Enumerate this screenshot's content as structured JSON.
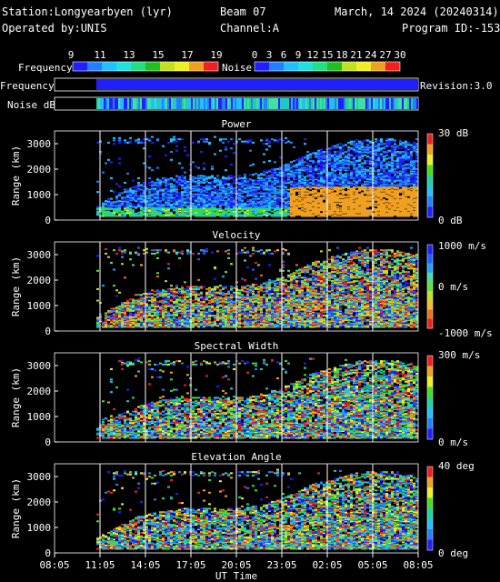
{
  "header": {
    "station": "Station:Longyearbyen (lyr)",
    "beam": "Beam 07",
    "date": "March, 14 2024 (20240314)",
    "operator": "Operated by:UNIS",
    "channel": "Channel:A",
    "program": "Program ID:-153",
    "revision": "Revision:3.0"
  },
  "legend": {
    "frequency_label": "Frequency",
    "noise_label": "Noise",
    "frequency_ticks": [
      "9",
      "11",
      "13",
      "15",
      "17",
      "19"
    ],
    "noise_ticks": [
      "0",
      "3",
      "6",
      "9",
      "12",
      "15",
      "18",
      "21",
      "24",
      "27",
      "30"
    ],
    "colors": [
      "#2020ff",
      "#2080ff",
      "#20c0ff",
      "#20e0e0",
      "#20e080",
      "#20c020",
      "#c0e020",
      "#f0f020",
      "#f0a020",
      "#f02020"
    ]
  },
  "bars": {
    "frequency_label": "Frequency",
    "noise_label": "Noise dB"
  },
  "chart_data": [
    {
      "type": "heatmap",
      "title": "Power",
      "ylabel": "Range (km)",
      "yticks": [
        "0",
        "1000",
        "2000",
        "3000"
      ],
      "ylim": [
        0,
        3500
      ],
      "scale_labels": [
        "30 dB",
        "0 dB"
      ],
      "scale_range": [
        0,
        30
      ],
      "scale_colors": [
        "#f02020",
        "#f0a020",
        "#f0f020",
        "#40e020",
        "#20d0a0",
        "#20c0ff",
        "#2080ff",
        "#2020ff"
      ]
    },
    {
      "type": "heatmap",
      "title": "Velocity",
      "ylabel": "Range (km)",
      "yticks": [
        "0",
        "1000",
        "2000",
        "3000"
      ],
      "ylim": [
        0,
        3500
      ],
      "scale_labels": [
        "1000 m/s",
        "0 m/s",
        "-1000 m/s"
      ],
      "scale_range": [
        -1000,
        1000
      ],
      "scale_colors": [
        "#2020ff",
        "#2060ff",
        "#20a0ff",
        "#40e0a0",
        "#60e040",
        "#c0e020",
        "#f0c020",
        "#f07020",
        "#f02020"
      ]
    },
    {
      "type": "heatmap",
      "title": "Spectral Width",
      "ylabel": "Range (km)",
      "yticks": [
        "0",
        "1000",
        "2000",
        "3000"
      ],
      "ylim": [
        0,
        3500
      ],
      "scale_labels": [
        "300 m/s",
        "0 m/s"
      ],
      "scale_range": [
        0,
        300
      ],
      "scale_colors": [
        "#f02020",
        "#f0a020",
        "#f0f020",
        "#40e020",
        "#20d0a0",
        "#20c0ff",
        "#2080ff",
        "#2020ff"
      ]
    },
    {
      "type": "heatmap",
      "title": "Elevation Angle",
      "ylabel": "Range (km)",
      "yticks": [
        "0",
        "1000",
        "2000",
        "3000"
      ],
      "ylim": [
        0,
        3500
      ],
      "scale_labels": [
        "40 deg",
        "0 deg"
      ],
      "scale_range": [
        0,
        40
      ],
      "scale_colors": [
        "#f02020",
        "#f0a020",
        "#f0f020",
        "#40e020",
        "#20d0a0",
        "#20c0ff",
        "#2080ff",
        "#2020ff"
      ]
    }
  ],
  "time_axis": {
    "ticks": [
      "08:05",
      "11:05",
      "14:05",
      "17:05",
      "20:05",
      "23:05",
      "02:05",
      "05:05",
      "08:05"
    ],
    "label": "UT Time"
  }
}
